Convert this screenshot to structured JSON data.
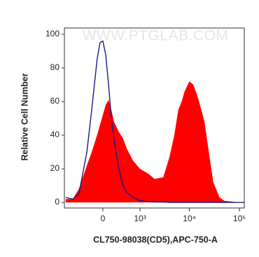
{
  "chart_data": {
    "type": "histogram-overlay",
    "watermark": "WWW.PTGLAB.COM",
    "x_label": "CL750-98038(CD5),APC-750-A",
    "y_label": "Relative Cell Number",
    "x": [
      -1000,
      -700,
      -500,
      -300,
      -200,
      -100,
      -50,
      0,
      50,
      100,
      150,
      200,
      300,
      400,
      500,
      700,
      1000,
      1500,
      2000,
      3000,
      4000,
      5000,
      6000,
      7000,
      8000,
      10000,
      12000,
      15000,
      20000,
      25000,
      30000,
      40000,
      50000,
      70000,
      100000,
      125000
    ],
    "series": [
      {
        "color": "#ff0000",
        "style": "area",
        "values": [
          2,
          2,
          8,
          22,
          30,
          40,
          46,
          52,
          58,
          61,
          55,
          48,
          42,
          38,
          32,
          25,
          20,
          17,
          14,
          15,
          27,
          40,
          55,
          60,
          66,
          72,
          70,
          62,
          48,
          28,
          12,
          3,
          1,
          0.5,
          0,
          0
        ]
      },
      {
        "color": "#1a1a8c",
        "style": "line",
        "values": [
          3,
          2,
          5,
          30,
          55,
          85,
          95,
          96,
          88,
          70,
          50,
          38,
          20,
          10,
          6,
          3,
          1,
          0.5,
          0.3,
          0.2,
          0,
          0,
          0,
          0,
          0,
          0,
          0,
          0,
          0,
          0,
          0,
          0,
          0,
          0,
          0,
          0
        ]
      }
    ],
    "xlim": [
      -1063,
      125000
    ],
    "xticks": [
      0,
      {
        "value": 1000,
        "label": "10³"
      },
      {
        "value": 10000,
        "label": "10⁴"
      },
      {
        "value": 100000,
        "label": "10⁵"
      }
    ],
    "ylim": [
      -3.3,
      103.75
    ],
    "yticks": [
      0,
      20,
      40,
      60,
      80,
      100
    ]
  }
}
